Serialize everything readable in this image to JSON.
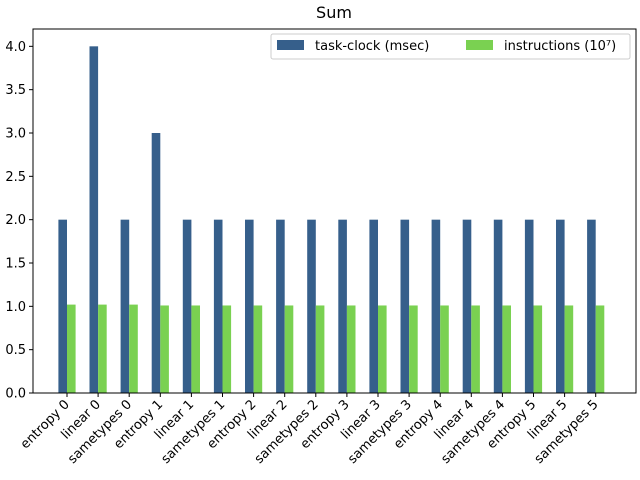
{
  "chart_data": {
    "type": "bar",
    "title": "Sum",
    "xlabel": "",
    "ylabel": "",
    "categories": [
      "entropy 0",
      "linear 0",
      "sametypes 0",
      "entropy 1",
      "linear 1",
      "sametypes 1",
      "entropy 2",
      "linear 2",
      "sametypes 2",
      "entropy 3",
      "linear 3",
      "sametypes 3",
      "entropy 4",
      "linear 4",
      "sametypes 4",
      "entropy 5",
      "linear 5",
      "sametypes 5"
    ],
    "series": [
      {
        "name": "task-clock (msec)",
        "color": "#365f8b",
        "values": [
          2,
          4,
          2,
          3,
          2,
          2,
          2,
          2,
          2,
          2,
          2,
          2,
          2,
          2,
          2,
          2,
          2,
          2
        ]
      },
      {
        "name": "instructions (10⁷)",
        "color": "#7ad151",
        "values": [
          1.02,
          1.02,
          1.02,
          1.01,
          1.01,
          1.01,
          1.01,
          1.01,
          1.01,
          1.01,
          1.01,
          1.01,
          1.01,
          1.01,
          1.01,
          1.01,
          1.01,
          1.01
        ]
      }
    ],
    "ylim": [
      0,
      4.2
    ],
    "yticks": [
      0.0,
      0.5,
      1.0,
      1.5,
      2.0,
      2.5,
      3.0,
      3.5,
      4.0
    ],
    "ytick_labels": [
      "0.0",
      "0.5",
      "1.0",
      "1.5",
      "2.0",
      "2.5",
      "3.0",
      "3.5",
      "4.0"
    ],
    "legend_position": "top-right",
    "legend_columns": 2,
    "grid": false
  }
}
